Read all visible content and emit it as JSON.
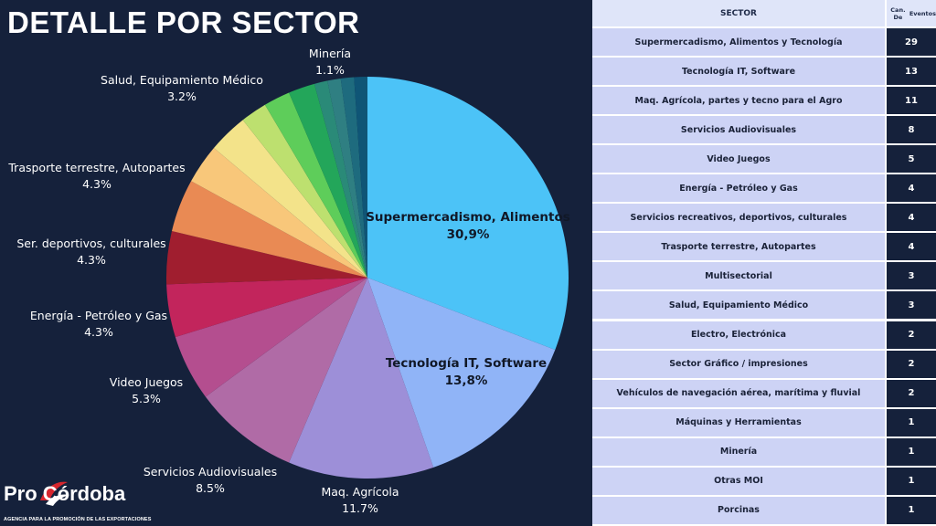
{
  "title": "DETALLE POR SECTOR",
  "colors": {
    "background": "#15213b",
    "slices": [
      "#4cc3f7",
      "#90b4f7",
      "#9d8fd8",
      "#b06ba6",
      "#b44e8f",
      "#c2255c",
      "#a01e2f",
      "#e98a54",
      "#f8c77a",
      "#f3e38a",
      "#bde06f",
      "#5ecd5a",
      "#23a65a",
      "#2a8a78",
      "#2f7f82",
      "#1e6b7e",
      "#0f5576"
    ]
  },
  "chart_data": {
    "type": "pie",
    "slices": [
      {
        "label": "Supermercadismo, Alimentos y Tecnología",
        "display_label": "Supermercadismo, Alimentos",
        "display_pct": "30,9%",
        "value": 29,
        "label_inside": true
      },
      {
        "label": "Tecnología IT, Software",
        "display_label": "Tecnología IT, Software",
        "display_pct": "13,8%",
        "value": 13,
        "label_inside": true
      },
      {
        "label": "Maq. Agrícola, partes y tecno para el Agro",
        "display_label": "Maq. Agrícola",
        "display_pct": "11.7%",
        "value": 11
      },
      {
        "label": "Servicios Audiovisuales",
        "display_label": "Servicios Audiovisuales",
        "display_pct": "8.5%",
        "value": 8
      },
      {
        "label": "Video Juegos",
        "display_label": "Video Juegos",
        "display_pct": "5.3%",
        "value": 5
      },
      {
        "label": "Energía - Petróleo y Gas",
        "display_label": "Energía - Petróleo y Gas",
        "display_pct": "4.3%",
        "value": 4
      },
      {
        "label": "Servicios recreativos, deportivos, culturales",
        "display_label": "Ser. deportivos, culturales",
        "display_pct": "4.3%",
        "value": 4
      },
      {
        "label": "Trasporte terrestre, Autopartes",
        "display_label": "Trasporte terrestre, Autopartes",
        "display_pct": "4.3%",
        "value": 4
      },
      {
        "label": "Multisectorial",
        "value": 3
      },
      {
        "label": "Salud, Equipamiento Médico",
        "display_label": "Salud, Equipamiento Médico",
        "display_pct": "3.2%",
        "value": 3
      },
      {
        "label": "Electro, Electrónica",
        "value": 2
      },
      {
        "label": "Sector Gráfico / impresiones",
        "value": 2
      },
      {
        "label": "Vehículos de navegación aérea, marítima y fluvial",
        "value": 2
      },
      {
        "label": "Máquinas y Herramientas",
        "value": 1
      },
      {
        "label": "Minería",
        "display_label": "Minería",
        "display_pct": "1.1%",
        "value": 1
      },
      {
        "label": "Otras MOI",
        "value": 1
      },
      {
        "label": "Porcinas",
        "value": 1
      }
    ]
  },
  "table": {
    "header_sector": "SECTOR",
    "header_count_line1": "Can. De",
    "header_count_line2": "Eventos",
    "rows": [
      {
        "sector": "Supermercadismo, Alimentos y Tecnología",
        "count": "29"
      },
      {
        "sector": "Tecnología IT, Software",
        "count": "13"
      },
      {
        "sector": "Maq. Agrícola, partes y tecno para el Agro",
        "count": "11"
      },
      {
        "sector": "Servicios Audiovisuales",
        "count": "8"
      },
      {
        "sector": "Video Juegos",
        "count": "5"
      },
      {
        "sector": "Energía - Petróleo y Gas",
        "count": "4"
      },
      {
        "sector": "Servicios recreativos, deportivos, culturales",
        "count": "4"
      },
      {
        "sector": "Trasporte terrestre, Autopartes",
        "count": "4"
      },
      {
        "sector": "Multisectorial",
        "count": "3"
      },
      {
        "sector": "Salud, Equipamiento Médico",
        "count": "3"
      },
      {
        "sector": "Electro, Electrónica",
        "count": "2"
      },
      {
        "sector": "Sector Gráfico / impresiones",
        "count": "2"
      },
      {
        "sector": "Vehículos de navegación aérea, marítima y fluvial",
        "count": "2"
      },
      {
        "sector": "Máquinas y Herramientas",
        "count": "1"
      },
      {
        "sector": "Minería",
        "count": "1"
      },
      {
        "sector": "Otras MOI",
        "count": "1"
      },
      {
        "sector": "Porcinas",
        "count": "1"
      }
    ]
  },
  "logo": {
    "brand": "Pro Córdoba",
    "tagline": "AGENCIA PARA LA PROMOCIÓN DE LAS EXPORTACIONES"
  }
}
